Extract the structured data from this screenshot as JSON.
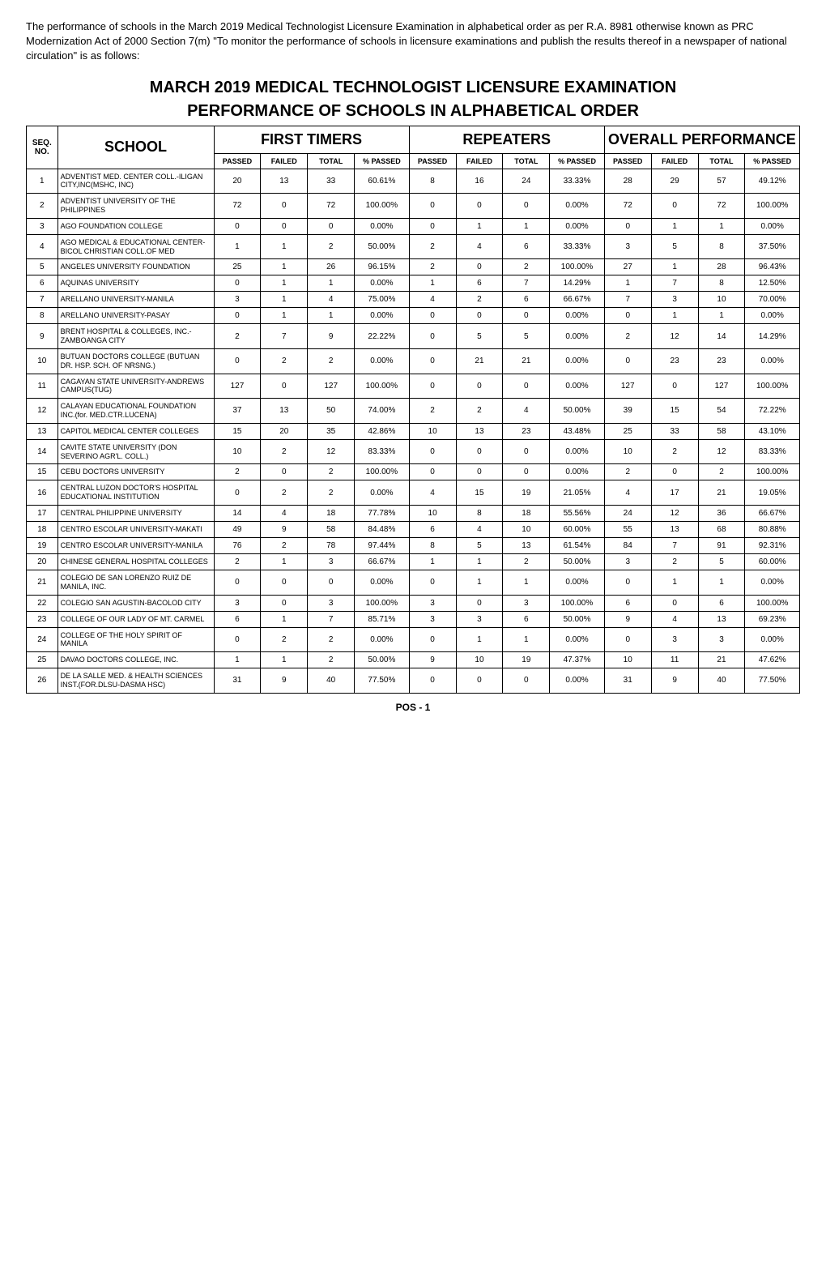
{
  "intro": "The performance of schools in the March 2019 Medical Technologist Licensure Examination in alphabetical order as per R.A. 8981 otherwise known as PRC Modernization Act of 2000 Section 7(m) \"To monitor the performance of schools in licensure examinations and publish the results thereof in a newspaper of national circulation\" is as follows:",
  "title1": "MARCH 2019 MEDICAL TECHNOLOGIST LICENSURE EXAMINATION",
  "title2": "PERFORMANCE OF SCHOOLS IN ALPHABETICAL ORDER",
  "footer": "POS - 1",
  "headers": {
    "seq": "SEQ. NO.",
    "school": "SCHOOL",
    "first": "FIRST TIMERS",
    "repeat": "REPEATERS",
    "overall": "OVERALL PERFORMANCE",
    "passed": "PASSED",
    "failed": "FAILED",
    "total": "TOTAL",
    "pct": "% PASSED"
  },
  "table_style": {
    "border_color": "#000000",
    "background_color": "#ffffff",
    "header_group_fontsize": 18,
    "sub_header_fontsize": 9,
    "cell_fontsize": 10,
    "school_cell_fontsize": 9
  },
  "rows": [
    {
      "seq": 1,
      "school": "ADVENTIST MED. CENTER COLL.-ILIGAN CITY,INC(MSHC, INC)",
      "fp": 20,
      "ff": 13,
      "ft": 33,
      "fpct": "60.61%",
      "rp": 8,
      "rf": 16,
      "rt": 24,
      "rpct": "33.33%",
      "op": 28,
      "of": 29,
      "ot": 57,
      "opct": "49.12%"
    },
    {
      "seq": 2,
      "school": "ADVENTIST UNIVERSITY OF THE PHILIPPINES",
      "fp": 72,
      "ff": 0,
      "ft": 72,
      "fpct": "100.00%",
      "rp": 0,
      "rf": 0,
      "rt": 0,
      "rpct": "0.00%",
      "op": 72,
      "of": 0,
      "ot": 72,
      "opct": "100.00%"
    },
    {
      "seq": 3,
      "school": "AGO FOUNDATION COLLEGE",
      "fp": 0,
      "ff": 0,
      "ft": 0,
      "fpct": "0.00%",
      "rp": 0,
      "rf": 1,
      "rt": 1,
      "rpct": "0.00%",
      "op": 0,
      "of": 1,
      "ot": 1,
      "opct": "0.00%"
    },
    {
      "seq": 4,
      "school": "AGO MEDICAL & EDUCATIONAL CENTER-BICOL CHRISTIAN COLL.OF MED",
      "fp": 1,
      "ff": 1,
      "ft": 2,
      "fpct": "50.00%",
      "rp": 2,
      "rf": 4,
      "rt": 6,
      "rpct": "33.33%",
      "op": 3,
      "of": 5,
      "ot": 8,
      "opct": "37.50%"
    },
    {
      "seq": 5,
      "school": "ANGELES UNIVERSITY FOUNDATION",
      "fp": 25,
      "ff": 1,
      "ft": 26,
      "fpct": "96.15%",
      "rp": 2,
      "rf": 0,
      "rt": 2,
      "rpct": "100.00%",
      "op": 27,
      "of": 1,
      "ot": 28,
      "opct": "96.43%"
    },
    {
      "seq": 6,
      "school": "AQUINAS UNIVERSITY",
      "fp": 0,
      "ff": 1,
      "ft": 1,
      "fpct": "0.00%",
      "rp": 1,
      "rf": 6,
      "rt": 7,
      "rpct": "14.29%",
      "op": 1,
      "of": 7,
      "ot": 8,
      "opct": "12.50%"
    },
    {
      "seq": 7,
      "school": "ARELLANO UNIVERSITY-MANILA",
      "fp": 3,
      "ff": 1,
      "ft": 4,
      "fpct": "75.00%",
      "rp": 4,
      "rf": 2,
      "rt": 6,
      "rpct": "66.67%",
      "op": 7,
      "of": 3,
      "ot": 10,
      "opct": "70.00%"
    },
    {
      "seq": 8,
      "school": "ARELLANO UNIVERSITY-PASAY",
      "fp": 0,
      "ff": 1,
      "ft": 1,
      "fpct": "0.00%",
      "rp": 0,
      "rf": 0,
      "rt": 0,
      "rpct": "0.00%",
      "op": 0,
      "of": 1,
      "ot": 1,
      "opct": "0.00%"
    },
    {
      "seq": 9,
      "school": "BRENT HOSPITAL & COLLEGES, INC.-ZAMBOANGA CITY",
      "fp": 2,
      "ff": 7,
      "ft": 9,
      "fpct": "22.22%",
      "rp": 0,
      "rf": 5,
      "rt": 5,
      "rpct": "0.00%",
      "op": 2,
      "of": 12,
      "ot": 14,
      "opct": "14.29%"
    },
    {
      "seq": 10,
      "school": "BUTUAN DOCTORS COLLEGE (BUTUAN DR. HSP. SCH. OF NRSNG.)",
      "fp": 0,
      "ff": 2,
      "ft": 2,
      "fpct": "0.00%",
      "rp": 0,
      "rf": 21,
      "rt": 21,
      "rpct": "0.00%",
      "op": 0,
      "of": 23,
      "ot": 23,
      "opct": "0.00%"
    },
    {
      "seq": 11,
      "school": "CAGAYAN STATE UNIVERSITY-ANDREWS CAMPUS(TUG)",
      "fp": 127,
      "ff": 0,
      "ft": 127,
      "fpct": "100.00%",
      "rp": 0,
      "rf": 0,
      "rt": 0,
      "rpct": "0.00%",
      "op": 127,
      "of": 0,
      "ot": 127,
      "opct": "100.00%"
    },
    {
      "seq": 12,
      "school": "CALAYAN EDUCATIONAL FOUNDATION INC.(for. MED.CTR.LUCENA)",
      "fp": 37,
      "ff": 13,
      "ft": 50,
      "fpct": "74.00%",
      "rp": 2,
      "rf": 2,
      "rt": 4,
      "rpct": "50.00%",
      "op": 39,
      "of": 15,
      "ot": 54,
      "opct": "72.22%"
    },
    {
      "seq": 13,
      "school": "CAPITOL MEDICAL CENTER COLLEGES",
      "fp": 15,
      "ff": 20,
      "ft": 35,
      "fpct": "42.86%",
      "rp": 10,
      "rf": 13,
      "rt": 23,
      "rpct": "43.48%",
      "op": 25,
      "of": 33,
      "ot": 58,
      "opct": "43.10%"
    },
    {
      "seq": 14,
      "school": "CAVITE STATE UNIVERSITY (DON SEVERINO AGR'L. COLL.)",
      "fp": 10,
      "ff": 2,
      "ft": 12,
      "fpct": "83.33%",
      "rp": 0,
      "rf": 0,
      "rt": 0,
      "rpct": "0.00%",
      "op": 10,
      "of": 2,
      "ot": 12,
      "opct": "83.33%"
    },
    {
      "seq": 15,
      "school": "CEBU DOCTORS UNIVERSITY",
      "fp": 2,
      "ff": 0,
      "ft": 2,
      "fpct": "100.00%",
      "rp": 0,
      "rf": 0,
      "rt": 0,
      "rpct": "0.00%",
      "op": 2,
      "of": 0,
      "ot": 2,
      "opct": "100.00%"
    },
    {
      "seq": 16,
      "school": "CENTRAL LUZON DOCTOR'S HOSPITAL EDUCATIONAL INSTITUTION",
      "fp": 0,
      "ff": 2,
      "ft": 2,
      "fpct": "0.00%",
      "rp": 4,
      "rf": 15,
      "rt": 19,
      "rpct": "21.05%",
      "op": 4,
      "of": 17,
      "ot": 21,
      "opct": "19.05%"
    },
    {
      "seq": 17,
      "school": "CENTRAL PHILIPPINE UNIVERSITY",
      "fp": 14,
      "ff": 4,
      "ft": 18,
      "fpct": "77.78%",
      "rp": 10,
      "rf": 8,
      "rt": 18,
      "rpct": "55.56%",
      "op": 24,
      "of": 12,
      "ot": 36,
      "opct": "66.67%"
    },
    {
      "seq": 18,
      "school": "CENTRO ESCOLAR UNIVERSITY-MAKATI",
      "fp": 49,
      "ff": 9,
      "ft": 58,
      "fpct": "84.48%",
      "rp": 6,
      "rf": 4,
      "rt": 10,
      "rpct": "60.00%",
      "op": 55,
      "of": 13,
      "ot": 68,
      "opct": "80.88%"
    },
    {
      "seq": 19,
      "school": "CENTRO ESCOLAR UNIVERSITY-MANILA",
      "fp": 76,
      "ff": 2,
      "ft": 78,
      "fpct": "97.44%",
      "rp": 8,
      "rf": 5,
      "rt": 13,
      "rpct": "61.54%",
      "op": 84,
      "of": 7,
      "ot": 91,
      "opct": "92.31%"
    },
    {
      "seq": 20,
      "school": "CHINESE GENERAL HOSPITAL COLLEGES",
      "fp": 2,
      "ff": 1,
      "ft": 3,
      "fpct": "66.67%",
      "rp": 1,
      "rf": 1,
      "rt": 2,
      "rpct": "50.00%",
      "op": 3,
      "of": 2,
      "ot": 5,
      "opct": "60.00%"
    },
    {
      "seq": 21,
      "school": "COLEGIO DE SAN LORENZO RUIZ DE MANILA, INC.",
      "fp": 0,
      "ff": 0,
      "ft": 0,
      "fpct": "0.00%",
      "rp": 0,
      "rf": 1,
      "rt": 1,
      "rpct": "0.00%",
      "op": 0,
      "of": 1,
      "ot": 1,
      "opct": "0.00%"
    },
    {
      "seq": 22,
      "school": "COLEGIO SAN AGUSTIN-BACOLOD CITY",
      "fp": 3,
      "ff": 0,
      "ft": 3,
      "fpct": "100.00%",
      "rp": 3,
      "rf": 0,
      "rt": 3,
      "rpct": "100.00%",
      "op": 6,
      "of": 0,
      "ot": 6,
      "opct": "100.00%"
    },
    {
      "seq": 23,
      "school": "COLLEGE OF OUR LADY OF MT. CARMEL",
      "fp": 6,
      "ff": 1,
      "ft": 7,
      "fpct": "85.71%",
      "rp": 3,
      "rf": 3,
      "rt": 6,
      "rpct": "50.00%",
      "op": 9,
      "of": 4,
      "ot": 13,
      "opct": "69.23%"
    },
    {
      "seq": 24,
      "school": "COLLEGE OF THE HOLY SPIRIT OF MANILA",
      "fp": 0,
      "ff": 2,
      "ft": 2,
      "fpct": "0.00%",
      "rp": 0,
      "rf": 1,
      "rt": 1,
      "rpct": "0.00%",
      "op": 0,
      "of": 3,
      "ot": 3,
      "opct": "0.00%"
    },
    {
      "seq": 25,
      "school": "DAVAO DOCTORS COLLEGE, INC.",
      "fp": 1,
      "ff": 1,
      "ft": 2,
      "fpct": "50.00%",
      "rp": 9,
      "rf": 10,
      "rt": 19,
      "rpct": "47.37%",
      "op": 10,
      "of": 11,
      "ot": 21,
      "opct": "47.62%"
    },
    {
      "seq": 26,
      "school": "DE LA SALLE MED. & HEALTH SCIENCES INST.(FOR.DLSU-DASMA HSC)",
      "fp": 31,
      "ff": 9,
      "ft": 40,
      "fpct": "77.50%",
      "rp": 0,
      "rf": 0,
      "rt": 0,
      "rpct": "0.00%",
      "op": 31,
      "of": 9,
      "ot": 40,
      "opct": "77.50%"
    }
  ]
}
